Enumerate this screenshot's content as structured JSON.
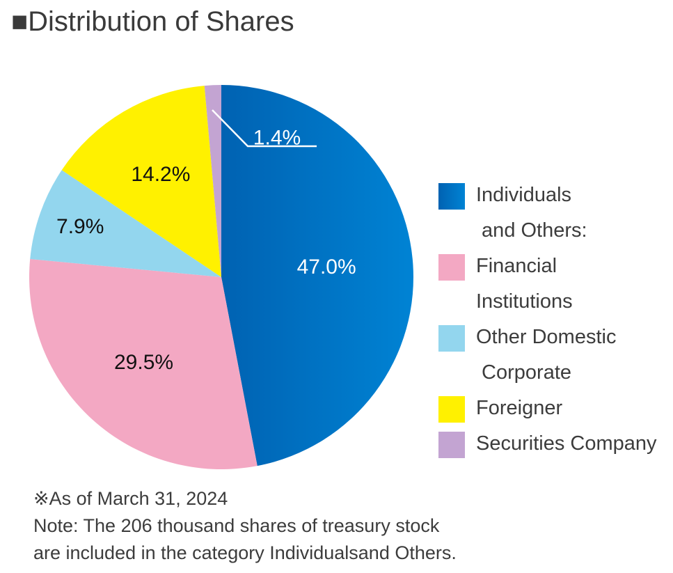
{
  "title": "■Distribution of Shares",
  "chart_data": {
    "type": "pie",
    "title": "",
    "slices": [
      {
        "label": "Individuals and Others:",
        "value": 47.0,
        "display": "47.0%",
        "color": "#0062b2",
        "color2": "#0083d4",
        "label_color": "#ffffff"
      },
      {
        "label": "Financial Institutions",
        "value": 29.5,
        "display": "29.5%",
        "color": "#f3a8c3",
        "label_color": "#111111"
      },
      {
        "label": "Other Domestic Corporate",
        "value": 7.9,
        "display": "7.9%",
        "color": "#93d6ee",
        "label_color": "#111111"
      },
      {
        "label": "Foreigner",
        "value": 14.2,
        "display": "14.2%",
        "color": "#fff100",
        "label_color": "#111111"
      },
      {
        "label": "Securities Company",
        "value": 1.4,
        "display": "1.4%",
        "color": "#c3a4d2",
        "label_color": "#ffffff"
      }
    ],
    "legend_placement": "right"
  },
  "legend": [
    {
      "line1": "Individuals",
      "line2": " and Others:"
    },
    {
      "line1": "Financial",
      "line2": "Institutions"
    },
    {
      "line1": "Other Domestic",
      "line2": " Corporate"
    },
    {
      "line1": "Foreigner",
      "line2": ""
    },
    {
      "line1": "Securities Company",
      "line2": ""
    }
  ],
  "notes": {
    "as_of": "※As of March 31, 2024",
    "note_line1": "Note: The 206 thousand shares of treasury stock",
    "note_line2": "are included in the category Individualsand Others."
  }
}
